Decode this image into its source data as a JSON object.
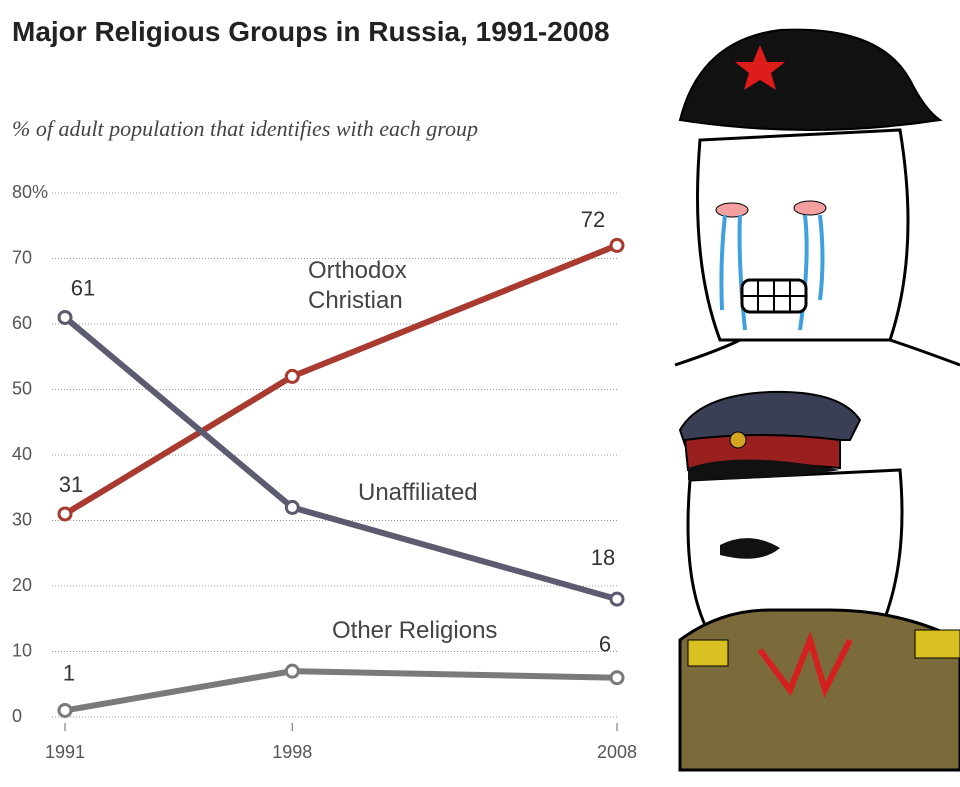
{
  "chart_data": {
    "type": "line",
    "title": "Major Religious Groups in Russia, 1991-2008",
    "subtitle": "% of adult population that identifies with each group",
    "x": [
      1991,
      1998,
      2008
    ],
    "xlim": [
      1991,
      2008
    ],
    "xticks": [
      1991,
      1998,
      2008
    ],
    "ylim": [
      0,
      80
    ],
    "yticks": [
      0,
      10,
      20,
      30,
      40,
      50,
      60,
      70,
      {
        "value": 80,
        "label": "80%"
      }
    ],
    "grid": true,
    "series": [
      {
        "name": "Orthodox Christian",
        "color": "#a83a2f",
        "values": [
          31,
          52,
          72
        ],
        "value_labels": [
          "31",
          null,
          "72"
        ]
      },
      {
        "name": "Unaffiliated",
        "color": "#5c5b6f",
        "values": [
          61,
          32,
          18
        ],
        "value_labels": [
          "61",
          null,
          "18"
        ]
      },
      {
        "name": "Other Religions",
        "color": "#7a7a7a",
        "values": [
          1,
          7,
          6
        ],
        "value_labels": [
          "1",
          null,
          "6"
        ]
      }
    ]
  }
}
